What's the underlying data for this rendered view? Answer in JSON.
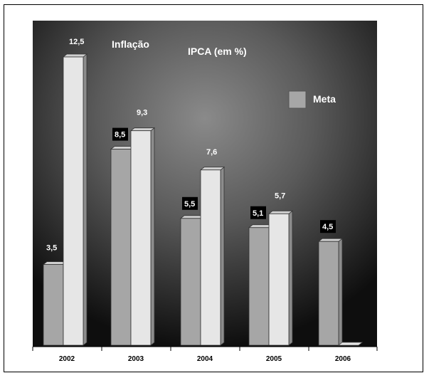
{
  "chart_data": {
    "type": "bar",
    "title": "Inflação",
    "subtitle": "IPCA (em %)",
    "categories": [
      "2002",
      "2003",
      "2004",
      "2005",
      "2006"
    ],
    "series": [
      {
        "name": "Meta",
        "values": [
          3.5,
          8.5,
          5.5,
          5.1,
          4.5
        ],
        "labels": [
          "3,5",
          "8,5",
          "5,5",
          "5,1",
          "4,5"
        ],
        "color": "#a6a6a6"
      },
      {
        "values": [
          12.5,
          9.3,
          7.6,
          5.7,
          0
        ],
        "labels": [
          "12,5",
          "9,3",
          "7,6",
          "5,7",
          ""
        ],
        "color": "#e6e6e6"
      }
    ],
    "ylim": [
      0,
      13
    ],
    "grid": false,
    "legend": "top-right",
    "background": "dark-radial"
  }
}
